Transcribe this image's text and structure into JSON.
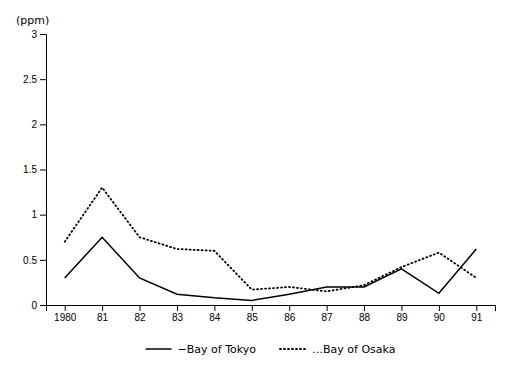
{
  "chart_data": {
    "type": "line",
    "categories": [
      "1980",
      "81",
      "82",
      "83",
      "84",
      "85",
      "86",
      "87",
      "88",
      "89",
      "90",
      "91"
    ],
    "series": [
      {
        "name": "−Bay of Tokyo",
        "color": "#000000",
        "line_style": "solid",
        "values": [
          0.3,
          0.75,
          0.3,
          0.12,
          0.08,
          0.05,
          0.12,
          0.2,
          0.2,
          0.4,
          0.13,
          0.62
        ]
      },
      {
        "name": "…Bay of Osaka",
        "color": "#000000",
        "line_style": "dotted",
        "values": [
          0.7,
          1.3,
          0.75,
          0.62,
          0.6,
          0.17,
          0.2,
          0.15,
          0.22,
          0.42,
          0.58,
          0.3
        ]
      }
    ],
    "ylabel": "(ppm)",
    "ylim": [
      0,
      3
    ],
    "yticks": [
      0,
      0.5,
      1,
      1.5,
      2,
      2.5,
      3
    ],
    "grid": false,
    "legend": "bottom"
  }
}
